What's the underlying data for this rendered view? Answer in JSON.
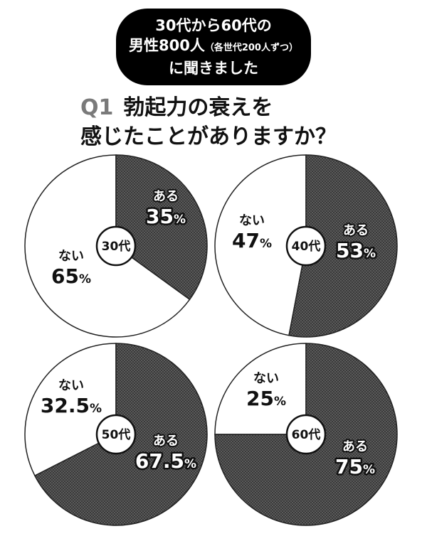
{
  "header": {
    "line1": "30代から60代の",
    "line2_main": "男性800人",
    "line2_sub": "（各世代200人ずつ）",
    "line3": "に聞きました"
  },
  "question": {
    "number": "Q1",
    "line1": "勃起力の衰えを",
    "line2": "感じたことがありますか？"
  },
  "colors": {
    "aru_fill": "#3a3a3a",
    "nai_fill": "#ffffff",
    "outline": "#222222"
  },
  "chart_data": [
    {
      "type": "pie",
      "center_label": "30代",
      "slices": [
        {
          "label": "ある",
          "value": 35,
          "value_text": "35",
          "unit": "%"
        },
        {
          "label": "ない",
          "value": 65,
          "value_text": "65",
          "unit": "%"
        }
      ]
    },
    {
      "type": "pie",
      "center_label": "40代",
      "slices": [
        {
          "label": "ある",
          "value": 53,
          "value_text": "53",
          "unit": "%"
        },
        {
          "label": "ない",
          "value": 47,
          "value_text": "47",
          "unit": "%"
        }
      ]
    },
    {
      "type": "pie",
      "center_label": "50代",
      "slices": [
        {
          "label": "ある",
          "value": 67.5,
          "value_text": "67.5",
          "unit": "%"
        },
        {
          "label": "ない",
          "value": 32.5,
          "value_text": "32.5",
          "unit": "%"
        }
      ]
    },
    {
      "type": "pie",
      "center_label": "60代",
      "slices": [
        {
          "label": "ある",
          "value": 75,
          "value_text": "75",
          "unit": "%"
        },
        {
          "label": "ない",
          "value": 25,
          "value_text": "25",
          "unit": "%"
        }
      ]
    }
  ]
}
